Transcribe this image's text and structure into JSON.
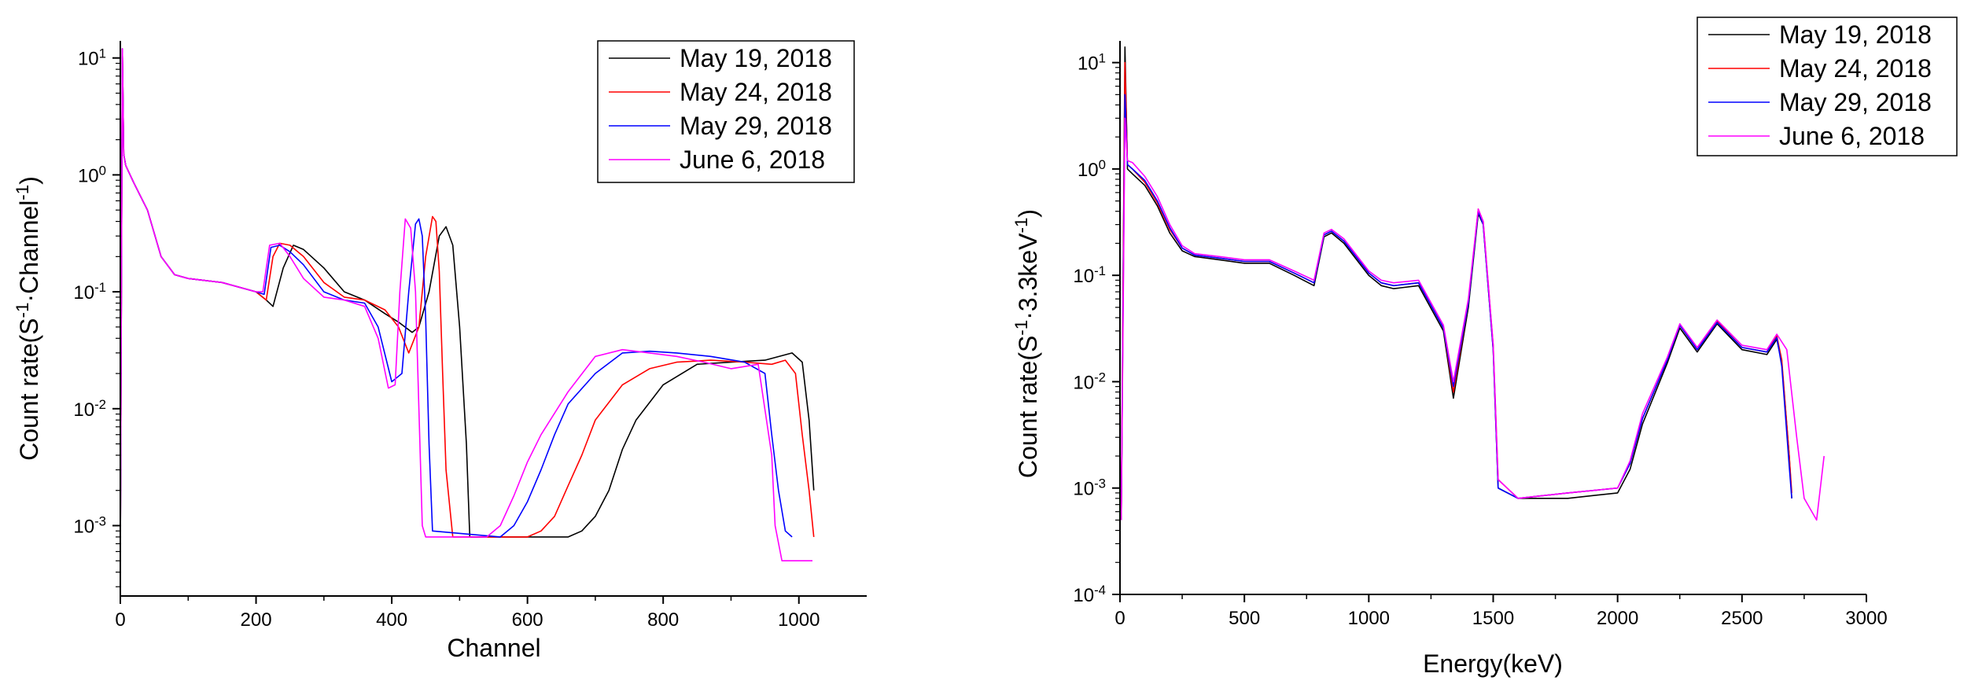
{
  "chart_data": [
    {
      "type": "line",
      "xlabel": "Channel",
      "ylabel": "Count rate(S⁻¹·Channel⁻¹)",
      "xscale": "linear",
      "yscale": "log",
      "xlim": [
        0,
        1100
      ],
      "ylim": [
        0.00025,
        14
      ],
      "xticks": [
        0,
        200,
        400,
        600,
        800,
        1000
      ],
      "xtick_labels": [
        "0",
        "200",
        "400",
        "600",
        "800",
        "1000"
      ],
      "yticks": [
        0.001,
        0.01,
        0.1,
        1,
        10
      ],
      "ytick_labels": [
        "10⁻³",
        "10⁻²",
        "10⁻¹",
        "10⁰",
        "10¹"
      ],
      "legend": "top-right",
      "series": [
        {
          "name": "May 19, 2018",
          "color": "#000000",
          "x": [
            0,
            3,
            5,
            8,
            20,
            40,
            60,
            80,
            100,
            150,
            200,
            215,
            225,
            240,
            255,
            270,
            300,
            330,
            360,
            390,
            410,
            430,
            440,
            455,
            470,
            480,
            490,
            500,
            510,
            515,
            600,
            640,
            660,
            680,
            700,
            720,
            740,
            760,
            800,
            850,
            900,
            950,
            990,
            1005,
            1015,
            1022
          ],
          "y": [
            0.0005,
            12,
            1.5,
            1.2,
            0.85,
            0.5,
            0.2,
            0.14,
            0.13,
            0.12,
            0.1,
            0.085,
            0.075,
            0.16,
            0.25,
            0.23,
            0.16,
            0.1,
            0.085,
            0.065,
            0.055,
            0.045,
            0.05,
            0.1,
            0.3,
            0.36,
            0.25,
            0.05,
            0.005,
            0.0008,
            0.0008,
            0.0008,
            0.0008,
            0.0009,
            0.0012,
            0.002,
            0.0045,
            0.008,
            0.016,
            0.024,
            0.025,
            0.026,
            0.03,
            0.025,
            0.008,
            0.002
          ]
        },
        {
          "name": "May 24, 2018",
          "color": "#ff0000",
          "x": [
            0,
            3,
            5,
            8,
            20,
            40,
            60,
            80,
            100,
            150,
            200,
            215,
            225,
            235,
            250,
            270,
            300,
            330,
            360,
            390,
            410,
            425,
            440,
            450,
            460,
            465,
            470,
            475,
            480,
            490,
            580,
            600,
            620,
            640,
            660,
            680,
            700,
            740,
            780,
            820,
            870,
            920,
            960,
            980,
            995,
            1005,
            1015,
            1022
          ],
          "y": [
            0.0005,
            12,
            1.5,
            1.2,
            0.85,
            0.5,
            0.2,
            0.14,
            0.13,
            0.12,
            0.1,
            0.085,
            0.2,
            0.26,
            0.25,
            0.2,
            0.12,
            0.09,
            0.085,
            0.07,
            0.05,
            0.03,
            0.05,
            0.2,
            0.44,
            0.4,
            0.15,
            0.02,
            0.003,
            0.0008,
            0.0008,
            0.0008,
            0.0009,
            0.0012,
            0.0022,
            0.004,
            0.008,
            0.016,
            0.022,
            0.025,
            0.026,
            0.025,
            0.024,
            0.026,
            0.02,
            0.006,
            0.002,
            0.0008
          ]
        },
        {
          "name": "May 29, 2018",
          "color": "#0000ff",
          "x": [
            0,
            3,
            5,
            8,
            20,
            40,
            60,
            80,
            100,
            150,
            200,
            212,
            222,
            235,
            250,
            270,
            300,
            330,
            360,
            380,
            400,
            415,
            425,
            435,
            440,
            445,
            450,
            455,
            460,
            560,
            580,
            600,
            620,
            640,
            660,
            700,
            740,
            780,
            820,
            870,
            920,
            950,
            960,
            970,
            980,
            990
          ],
          "y": [
            0.0005,
            12,
            1.5,
            1.2,
            0.85,
            0.5,
            0.2,
            0.14,
            0.13,
            0.12,
            0.1,
            0.095,
            0.24,
            0.25,
            0.22,
            0.17,
            0.1,
            0.085,
            0.08,
            0.05,
            0.017,
            0.02,
            0.1,
            0.38,
            0.42,
            0.3,
            0.06,
            0.005,
            0.0009,
            0.0008,
            0.001,
            0.0016,
            0.003,
            0.006,
            0.011,
            0.02,
            0.03,
            0.031,
            0.03,
            0.028,
            0.025,
            0.02,
            0.006,
            0.002,
            0.0009,
            0.0008
          ]
        },
        {
          "name": "June 6, 2018",
          "color": "#ff00ff",
          "x": [
            0,
            3,
            5,
            8,
            20,
            40,
            60,
            80,
            100,
            150,
            200,
            210,
            220,
            235,
            250,
            270,
            300,
            330,
            360,
            380,
            395,
            405,
            412,
            420,
            428,
            435,
            440,
            445,
            450,
            540,
            560,
            580,
            600,
            620,
            660,
            700,
            740,
            780,
            820,
            860,
            900,
            940,
            960,
            965,
            975,
            990,
            1020
          ],
          "y": [
            0.0005,
            12,
            1.5,
            1.2,
            0.85,
            0.5,
            0.2,
            0.14,
            0.13,
            0.12,
            0.1,
            0.1,
            0.25,
            0.26,
            0.2,
            0.13,
            0.09,
            0.085,
            0.075,
            0.04,
            0.015,
            0.016,
            0.1,
            0.42,
            0.35,
            0.1,
            0.01,
            0.001,
            0.0008,
            0.0008,
            0.001,
            0.0018,
            0.0035,
            0.006,
            0.014,
            0.028,
            0.032,
            0.03,
            0.028,
            0.025,
            0.022,
            0.024,
            0.004,
            0.001,
            0.0005,
            0.0005,
            0.0005
          ]
        }
      ]
    },
    {
      "type": "line",
      "xlabel": "Energy(keV)",
      "ylabel": "Count rate(S⁻¹·3.3keV⁻¹)",
      "xscale": "linear",
      "yscale": "log",
      "xlim": [
        0,
        3000
      ],
      "ylim": [
        0.0001,
        16
      ],
      "xticks": [
        0,
        500,
        1000,
        1500,
        2000,
        2500,
        3000
      ],
      "xtick_labels": [
        "0",
        "500",
        "1000",
        "1500",
        "2000",
        "2500",
        "3000"
      ],
      "yticks": [
        0.0001,
        0.001,
        0.01,
        0.1,
        1,
        10
      ],
      "ytick_labels": [
        "10⁻⁴",
        "10⁻³",
        "10⁻²",
        "10⁻¹",
        "10⁰",
        "10¹"
      ],
      "legend": "top-right",
      "series": [
        {
          "name": "May 19, 2018",
          "color": "#000000",
          "x": [
            5,
            20,
            30,
            50,
            100,
            150,
            200,
            250,
            300,
            400,
            500,
            600,
            700,
            780,
            820,
            850,
            900,
            1000,
            1050,
            1100,
            1200,
            1300,
            1340,
            1400,
            1440,
            1460,
            1500,
            1520,
            1600,
            1800,
            2000,
            2050,
            2100,
            2200,
            2250,
            2320,
            2400,
            2500,
            2600,
            2640,
            2660,
            2690,
            2700
          ],
          "y": [
            0.0005,
            14,
            1.0,
            0.9,
            0.7,
            0.45,
            0.25,
            0.17,
            0.15,
            0.14,
            0.13,
            0.13,
            0.1,
            0.08,
            0.23,
            0.25,
            0.2,
            0.1,
            0.08,
            0.075,
            0.08,
            0.03,
            0.007,
            0.05,
            0.38,
            0.3,
            0.02,
            0.001,
            0.0008,
            0.0008,
            0.0009,
            0.0015,
            0.004,
            0.015,
            0.032,
            0.019,
            0.035,
            0.02,
            0.018,
            0.025,
            0.015,
            0.002,
            0.0008
          ]
        },
        {
          "name": "May 24, 2018",
          "color": "#ff0000",
          "x": [
            5,
            20,
            30,
            50,
            100,
            150,
            200,
            250,
            300,
            400,
            500,
            600,
            700,
            780,
            820,
            850,
            900,
            1000,
            1050,
            1100,
            1200,
            1300,
            1340,
            1400,
            1440,
            1460,
            1500,
            1520,
            1600,
            1800,
            2000,
            2050,
            2100,
            2200,
            2250,
            2320,
            2400,
            2500,
            2600,
            2640,
            2660,
            2690,
            2700
          ],
          "y": [
            0.0005,
            10,
            1.1,
            1.0,
            0.75,
            0.48,
            0.27,
            0.18,
            0.155,
            0.145,
            0.135,
            0.135,
            0.105,
            0.085,
            0.24,
            0.26,
            0.21,
            0.105,
            0.085,
            0.08,
            0.085,
            0.032,
            0.008,
            0.055,
            0.42,
            0.32,
            0.022,
            0.0012,
            0.0008,
            0.0009,
            0.001,
            0.0017,
            0.0045,
            0.016,
            0.034,
            0.02,
            0.037,
            0.021,
            0.019,
            0.027,
            0.016,
            0.002,
            0.0009
          ]
        },
        {
          "name": "May 29, 2018",
          "color": "#0000ff",
          "x": [
            5,
            20,
            30,
            50,
            100,
            150,
            200,
            250,
            300,
            400,
            500,
            600,
            700,
            780,
            820,
            850,
            900,
            1000,
            1050,
            1100,
            1200,
            1300,
            1340,
            1400,
            1440,
            1460,
            1500,
            1520,
            1600,
            1800,
            2000,
            2050,
            2100,
            2200,
            2250,
            2320,
            2400,
            2500,
            2600,
            2640,
            2660,
            2690,
            2700
          ],
          "y": [
            0.0005,
            5,
            1.1,
            1.0,
            0.78,
            0.5,
            0.28,
            0.18,
            0.155,
            0.145,
            0.135,
            0.135,
            0.105,
            0.085,
            0.24,
            0.26,
            0.21,
            0.105,
            0.085,
            0.08,
            0.085,
            0.032,
            0.009,
            0.055,
            0.4,
            0.3,
            0.02,
            0.001,
            0.0008,
            0.0009,
            0.001,
            0.0017,
            0.0045,
            0.016,
            0.034,
            0.02,
            0.036,
            0.021,
            0.019,
            0.026,
            0.014,
            0.0016,
            0.0008
          ]
        },
        {
          "name": "June 6, 2018",
          "color": "#ff00ff",
          "x": [
            5,
            20,
            30,
            50,
            100,
            150,
            200,
            250,
            300,
            400,
            500,
            600,
            700,
            780,
            820,
            850,
            900,
            1000,
            1050,
            1100,
            1200,
            1300,
            1340,
            1400,
            1440,
            1460,
            1500,
            1520,
            1600,
            1800,
            2000,
            2050,
            2100,
            2200,
            2250,
            2320,
            2400,
            2500,
            2600,
            2640,
            2680,
            2720,
            2750,
            2800,
            2830
          ],
          "y": [
            0.0005,
            3,
            1.2,
            1.15,
            0.85,
            0.55,
            0.3,
            0.19,
            0.16,
            0.15,
            0.14,
            0.14,
            0.11,
            0.09,
            0.25,
            0.27,
            0.22,
            0.11,
            0.09,
            0.085,
            0.09,
            0.034,
            0.01,
            0.06,
            0.42,
            0.32,
            0.022,
            0.0012,
            0.0008,
            0.0009,
            0.001,
            0.0018,
            0.005,
            0.017,
            0.035,
            0.021,
            0.038,
            0.022,
            0.02,
            0.028,
            0.02,
            0.003,
            0.0008,
            0.0005,
            0.002
          ]
        }
      ]
    }
  ]
}
